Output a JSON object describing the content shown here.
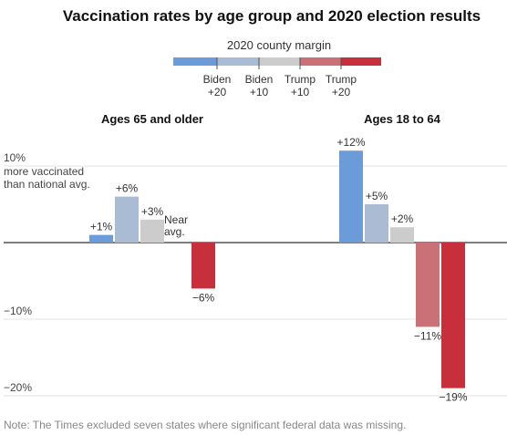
{
  "chart_data": {
    "type": "bar",
    "title": "Vaccination rates by age group and 2020 election results",
    "note": "Note: The Times excluded seven states where significant federal data was missing.",
    "legend": {
      "title": "2020 county margin",
      "ticks": [
        [
          "Biden",
          "+20"
        ],
        [
          "Biden",
          "+10"
        ],
        [
          "Trump",
          "+10"
        ],
        [
          "Trump",
          "+20"
        ]
      ],
      "colors": [
        "#6b9bd8",
        "#aabbd4",
        "#cccccc",
        "#c97176",
        "#c7303a"
      ]
    },
    "yaxis": {
      "ticks": [
        10,
        0,
        -10,
        -20
      ],
      "tick_labels": [
        "10%",
        "",
        "−10%",
        "−20%"
      ],
      "annotation_lines": [
        "more vaccinated",
        "than national avg."
      ],
      "ylim": [
        -21,
        13
      ]
    },
    "categories": [
      "Biden +20 or more",
      "Biden +10 to +20",
      "Near avg.",
      "Trump +10 to +20",
      "Trump +20 or more"
    ],
    "panels": [
      {
        "title": "Ages 65 and older",
        "values": [
          1,
          6,
          3,
          0,
          -6
        ],
        "labels": [
          "+1%",
          "+6%",
          "+3%",
          "",
          "−6%"
        ],
        "near_avg_label": [
          "Near",
          "avg."
        ]
      },
      {
        "title": "Ages 18 to 64",
        "values": [
          12,
          5,
          2,
          -11,
          -19
        ],
        "labels": [
          "+12%",
          "+5%",
          "+2%",
          "−11%",
          "−19%"
        ]
      }
    ]
  }
}
